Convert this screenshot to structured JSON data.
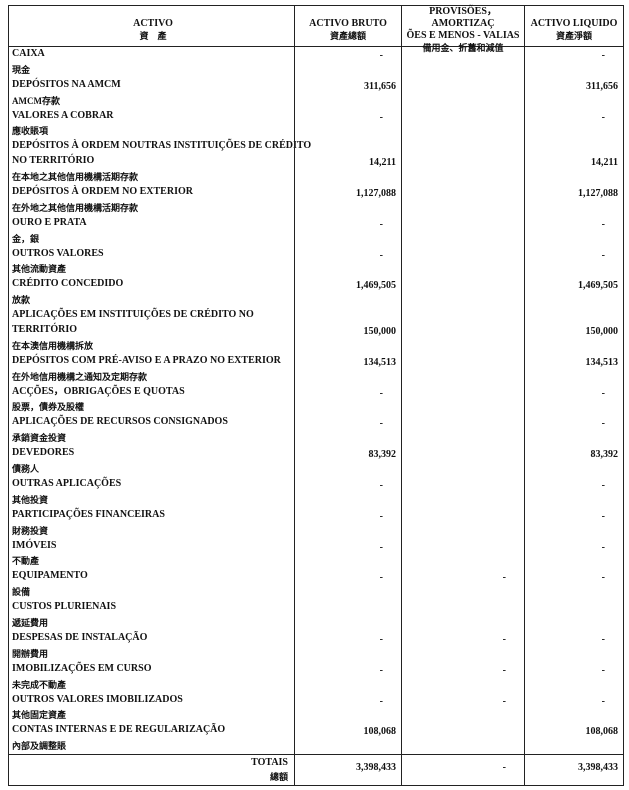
{
  "header": {
    "activo": {
      "pt": "ACTIVO",
      "zh": "資　產"
    },
    "bruto": {
      "pt": "ACTIVO BRUTO",
      "zh": "資產總額"
    },
    "provisoes": {
      "pt": [
        "PROVISÕES，AMORTIZAÇ",
        "ÕES E MENOS - VALIAS"
      ],
      "zh": "備用金、折舊和減值"
    },
    "liquido": {
      "pt": "ACTIVO LIQUIDO",
      "zh": "資產淨額"
    }
  },
  "rows": [
    {
      "pt": [
        "CAIXA"
      ],
      "zh": "現金",
      "bruto": "-",
      "liquido": "-"
    },
    {
      "pt": [
        "DEPÓSITOS NA AMCM"
      ],
      "zh": "AMCM存款",
      "bruto": "311,656",
      "liquido": "311,656"
    },
    {
      "pt": [
        "VALORES A COBRAR"
      ],
      "zh": "應收賬項",
      "bruto": "-",
      "liquido": "-"
    },
    {
      "pt": [
        "DEPÓSITOS À ORDEM NOUTRAS INSTITUIÇÕES DE CRÉDITO",
        "NO TERRITÓRIO"
      ],
      "zh": "在本地之其他信用機構活期存款",
      "bruto": "14,211",
      "liquido": "14,211"
    },
    {
      "pt": [
        "DEPÓSITOS À ORDEM NO EXTERIOR"
      ],
      "zh": "在外地之其他信用機構活期存款",
      "bruto": "1,127,088",
      "liquido": "1,127,088"
    },
    {
      "pt": [
        "OURO E PRATA"
      ],
      "zh": "金，銀",
      "bruto": "-",
      "liquido": "-"
    },
    {
      "pt": [
        "OUTROS VALORES"
      ],
      "zh": "其他流動資產",
      "bruto": "-",
      "liquido": "-"
    },
    {
      "pt": [
        "CRÉDITO CONCEDIDO"
      ],
      "zh": "放款",
      "bruto": "1,469,505",
      "liquido": "1,469,505"
    },
    {
      "pt": [
        "APLICAÇÕES EM INSTITUIÇÕES DE CRÉDITO NO",
        "TERRITÓRIO"
      ],
      "zh": "在本澳信用機構拆放",
      "bruto": "150,000",
      "liquido": "150,000"
    },
    {
      "pt": [
        "DEPÓSITOS COM PRÉ-AVISO E A PRAZO NO EXTERIOR"
      ],
      "zh": "在外地信用機構之通知及定期存款",
      "bruto": "134,513",
      "liquido": "134,513"
    },
    {
      "pt": [
        "ACÇÕES，OBRIGAÇÕES E QUOTAS"
      ],
      "zh": "股票，債券及股權",
      "bruto": "-",
      "liquido": "-"
    },
    {
      "pt": [
        "APLICAÇÕES DE RECURSOS CONSIGNADOS"
      ],
      "zh": "承銷資金投資",
      "bruto": "-",
      "liquido": "-"
    },
    {
      "pt": [
        "DEVEDORES"
      ],
      "zh": "債務人",
      "bruto": "83,392",
      "liquido": "83,392"
    },
    {
      "pt": [
        "OUTRAS APLICAÇÕES"
      ],
      "zh": "其他投資",
      "bruto": "-",
      "liquido": "-"
    },
    {
      "pt": [
        "PARTICIPAÇÕES FINANCEIRAS"
      ],
      "zh": "財務投資",
      "bruto": "-",
      "liquido": "-"
    },
    {
      "pt": [
        "IMÓVEIS"
      ],
      "zh": "不動產",
      "bruto": "-",
      "liquido": "-"
    },
    {
      "pt": [
        "EQUIPAMENTO"
      ],
      "zh": "設備",
      "bruto": "-",
      "provisoes": "-",
      "liquido": "-"
    },
    {
      "pt": [
        "CUSTOS PLURIENAIS"
      ],
      "zh": "遞延費用"
    },
    {
      "pt": [
        "DESPESAS DE INSTALAÇÃO"
      ],
      "zh": "開辦費用",
      "bruto": "-",
      "provisoes": "-",
      "liquido": "-"
    },
    {
      "pt": [
        "IMOBILIZAÇÕES EM CURSO"
      ],
      "zh": "未完成不動產",
      "bruto": "-",
      "provisoes": "-",
      "liquido": "-"
    },
    {
      "pt": [
        "OUTROS VALORES IMOBILIZADOS"
      ],
      "zh": "其他固定資產",
      "bruto": "-",
      "provisoes": "-",
      "liquido": "-"
    },
    {
      "pt": [
        "CONTAS INTERNAS E DE REGULARIZAÇÃO"
      ],
      "zh": "內部及調整賬",
      "bruto": "108,068",
      "liquido": "108,068"
    }
  ],
  "totals": {
    "pt": "TOTAIS",
    "zh": "總額",
    "bruto": "3,398,433",
    "provisoes": "-",
    "liquido": "3,398,433"
  }
}
